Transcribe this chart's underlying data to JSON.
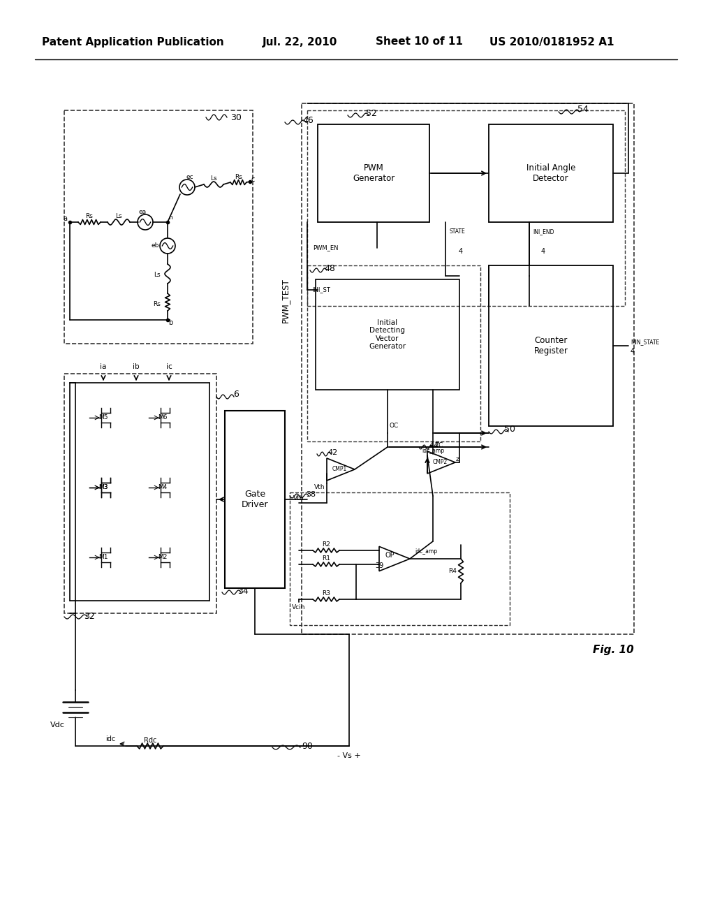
{
  "title_line1": "Patent Application Publication",
  "title_date": "Jul. 22, 2010",
  "title_sheet": "Sheet 10 of 11",
  "title_patent": "US 2010/0181952 A1",
  "fig_label": "Fig. 10",
  "bg_color": "#ffffff",
  "line_color": "#000000",
  "dashed_color": "#555555"
}
